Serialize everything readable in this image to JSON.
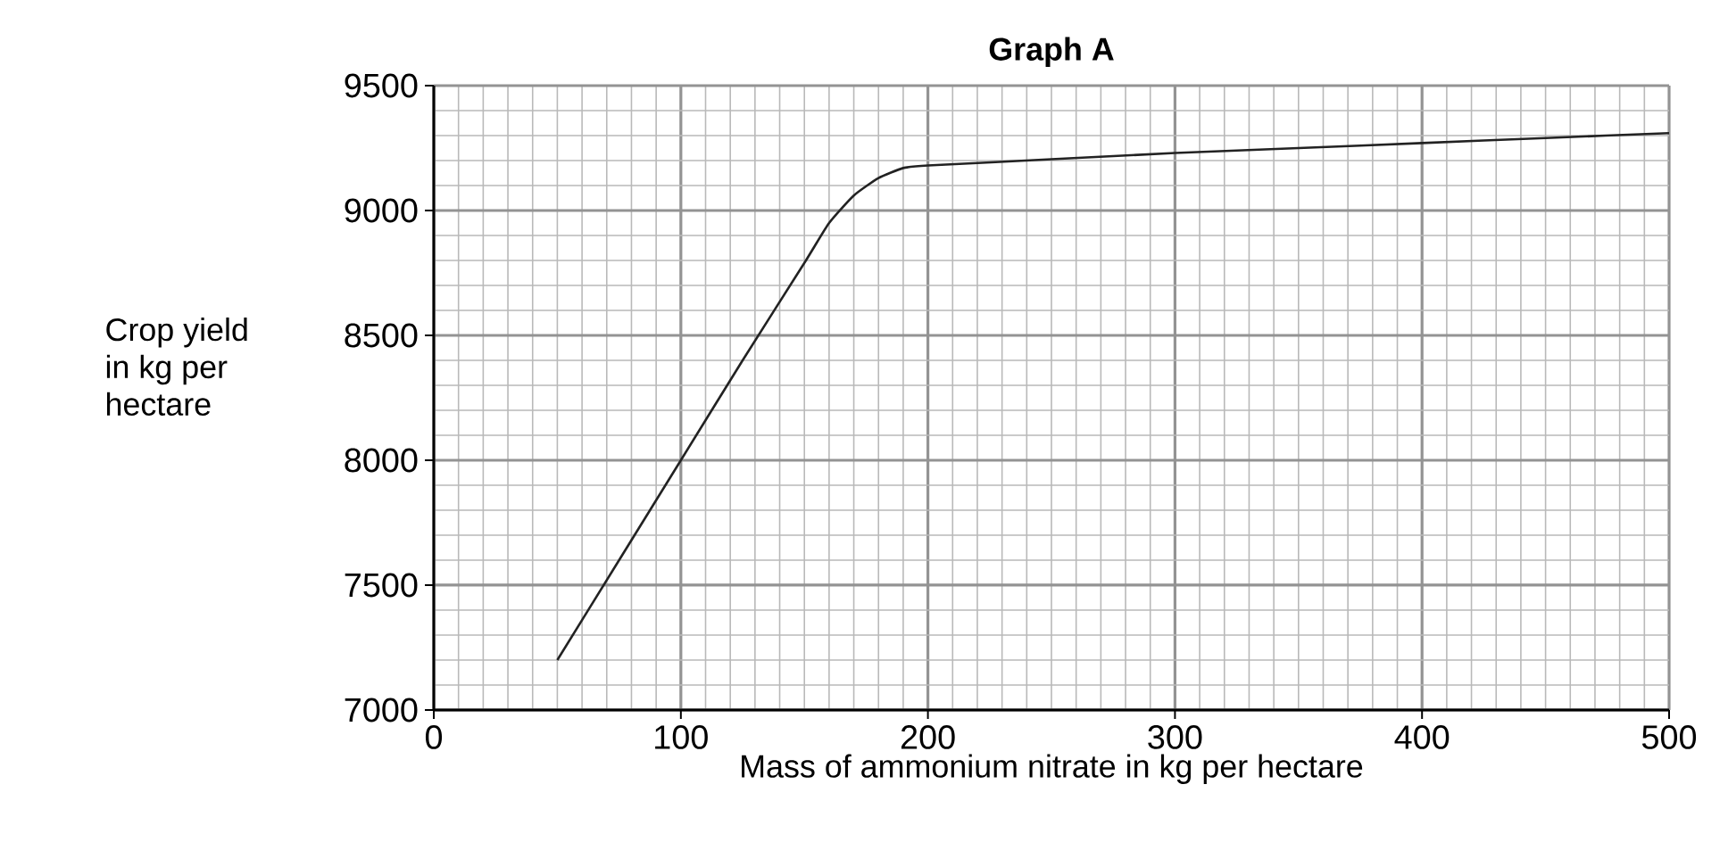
{
  "chart_data": {
    "type": "line",
    "title": "Graph A",
    "xlabel": "Mass of ammonium nitrate in kg per hectare",
    "ylabel": "Crop yield\nin kg per\nhectare",
    "series": [
      {
        "color": "#222222",
        "x": [
          50,
          75,
          100,
          125,
          150,
          160,
          170,
          180,
          190,
          200,
          250,
          300,
          350,
          400,
          450,
          500
        ],
        "values": [
          7200,
          7600,
          8000,
          8400,
          8790,
          8950,
          9060,
          9130,
          9170,
          9180,
          9205,
          9230,
          9250,
          9270,
          9290,
          9310
        ]
      }
    ],
    "xlim": [
      0,
      500
    ],
    "ylim": [
      7000,
      9500
    ],
    "xticks": [
      0,
      100,
      200,
      300,
      400,
      500
    ],
    "yticks": [
      7000,
      7500,
      8000,
      8500,
      9000,
      9500
    ],
    "grid": true,
    "marker": "none",
    "line_style": "solid"
  }
}
